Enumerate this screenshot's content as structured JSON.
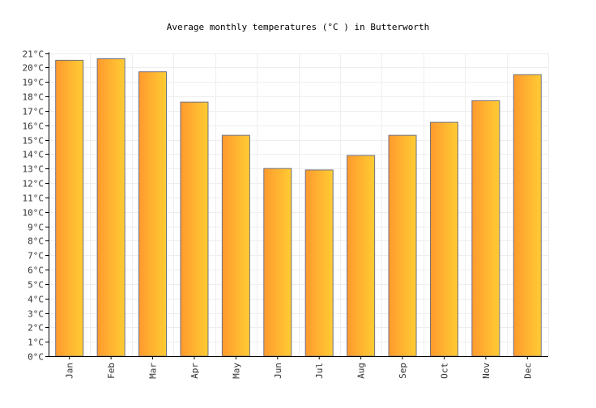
{
  "chart_data": {
    "type": "bar",
    "title": "Average monthly temperatures (°C ) in Butterworth",
    "xlabel": "",
    "ylabel": "",
    "unit": "°C",
    "categories": [
      "Jan",
      "Feb",
      "Mar",
      "Apr",
      "May",
      "Jun",
      "Jul",
      "Aug",
      "Sep",
      "Oct",
      "Nov",
      "Dec"
    ],
    "values": [
      20.5,
      20.6,
      19.7,
      17.6,
      15.3,
      13.0,
      12.9,
      13.9,
      15.3,
      16.2,
      17.7,
      19.5
    ],
    "ylim": [
      0,
      21
    ],
    "yticks": [
      "0°C",
      "1°C",
      "2°C",
      "3°C",
      "4°C",
      "5°C",
      "6°C",
      "7°C",
      "8°C",
      "9°C",
      "10°C",
      "11°C",
      "12°C",
      "13°C",
      "14°C",
      "15°C",
      "16°C",
      "17°C",
      "18°C",
      "19°C",
      "20°C",
      "21°C"
    ],
    "grid": true,
    "colors": {
      "bar_start": "#ff9a2e",
      "bar_end": "#ffcc33",
      "bar_stroke": "#707080",
      "grid": "#eeeeee",
      "axis": "#000000"
    }
  }
}
